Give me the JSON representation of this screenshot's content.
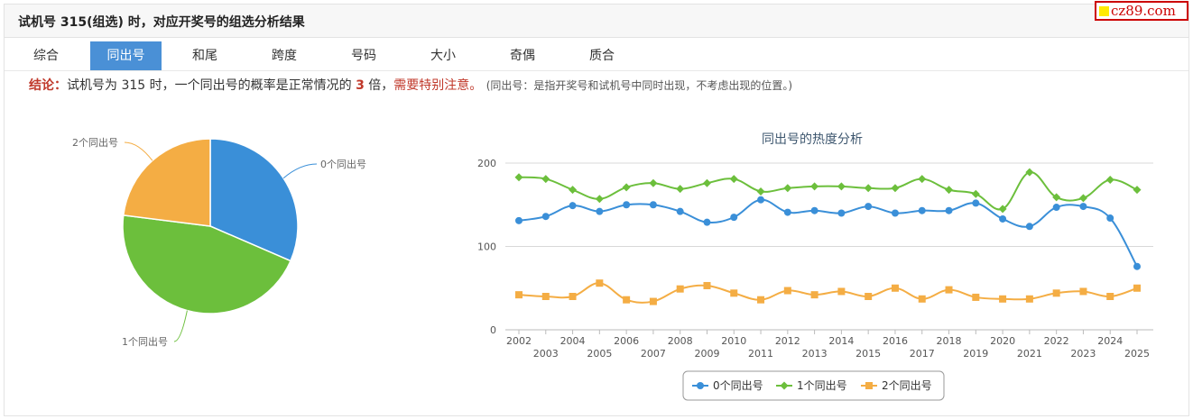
{
  "header": {
    "title": "试机号 315(组选) 时，对应开奖号的组选分析结果",
    "logo_text": "cz89.com"
  },
  "tabs": [
    {
      "label": "综合",
      "active": false
    },
    {
      "label": "同出号",
      "active": true
    },
    {
      "label": "和尾",
      "active": false
    },
    {
      "label": "跨度",
      "active": false
    },
    {
      "label": "号码",
      "active": false
    },
    {
      "label": "大小",
      "active": false
    },
    {
      "label": "奇偶",
      "active": false
    },
    {
      "label": "质合",
      "active": false
    }
  ],
  "conclusion": {
    "label": "结论：",
    "text1": "试机号为 315 时，一个同出号的概率是正常情况的",
    "multiple": "3",
    "text2": "倍，",
    "warning": "需要特别注意。",
    "note": "(同出号：是指开奖号和试机号中同时出现，不考虑出现的位置。)"
  },
  "colors": {
    "blue": "#3a8fd8",
    "green": "#6cbf3c",
    "orange": "#f4ad44"
  },
  "chart_data": [
    {
      "type": "pie",
      "labels": [
        "0个同出号",
        "1个同出号",
        "2个同出号"
      ],
      "values": [
        31.5,
        45.5,
        23
      ],
      "colors": [
        "#3a8fd8",
        "#6cbf3c",
        "#f4ad44"
      ]
    },
    {
      "type": "line",
      "title": "同出号的热度分析",
      "x": [
        "2002",
        "2003",
        "2004",
        "2005",
        "2006",
        "2007",
        "2008",
        "2009",
        "2010",
        "2011",
        "2012",
        "2013",
        "2014",
        "2015",
        "2016",
        "2017",
        "2018",
        "2019",
        "2020",
        "2021",
        "2022",
        "2023",
        "2024",
        "2025"
      ],
      "ylim": [
        0,
        200
      ],
      "yticks": [
        0,
        100,
        200
      ],
      "grid": true,
      "legend": "bottom-center",
      "series": [
        {
          "name": "0个同出号",
          "marker": "circle",
          "color": "#3a8fd8",
          "values": [
            131,
            136,
            149,
            142,
            150,
            150,
            142,
            129,
            135,
            156,
            141,
            143,
            140,
            148,
            140,
            143,
            143,
            152,
            133,
            124,
            147,
            148,
            134,
            76
          ]
        },
        {
          "name": "1个同出号",
          "marker": "diamond",
          "color": "#6cbf3c",
          "values": [
            183,
            181,
            168,
            157,
            171,
            176,
            169,
            176,
            181,
            166,
            170,
            172,
            172,
            170,
            170,
            181,
            168,
            163,
            145,
            189,
            159,
            158,
            180,
            168
          ]
        },
        {
          "name": "2个同出号",
          "marker": "square",
          "color": "#f4ad44",
          "values": [
            42,
            40,
            40,
            56,
            36,
            34,
            49,
            53,
            44,
            36,
            47,
            42,
            46,
            40,
            50,
            37,
            48,
            39,
            37,
            37,
            44,
            46,
            40,
            50
          ]
        }
      ]
    }
  ]
}
